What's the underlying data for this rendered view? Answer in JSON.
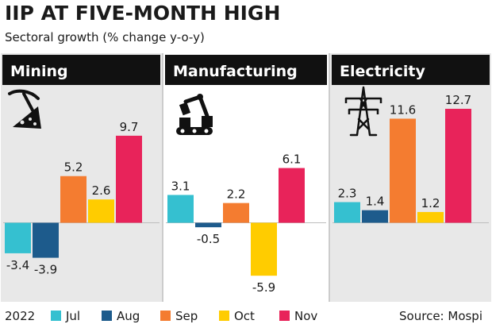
{
  "title": "IIP AT FIVE-MONTH HIGH",
  "subtitle": "Sectoral growth (% change y-o-y)",
  "source": "Source: Mospi",
  "legend": {
    "year": "2022",
    "items": [
      {
        "label": "Jul",
        "color": "#35c0d0"
      },
      {
        "label": "Aug",
        "color": "#1d5b8c"
      },
      {
        "label": "Sep",
        "color": "#f47c30"
      },
      {
        "label": "Oct",
        "color": "#ffcc00"
      },
      {
        "label": "Nov",
        "color": "#e8235a"
      }
    ]
  },
  "colors": {
    "panel_bg": "#e8e8e8",
    "panel_bg_alt": "#ffffff",
    "header_bg": "#111111",
    "header_text": "#ffffff"
  },
  "icons": [
    "mining-pickaxe-icon",
    "manufacturing-robot-arm-icon",
    "electricity-pylon-icon"
  ],
  "chart_data": {
    "type": "bar",
    "categories": [
      "Jul",
      "Aug",
      "Sep",
      "Oct",
      "Nov"
    ],
    "ylabel": "",
    "panels": [
      {
        "name": "Mining",
        "values": [
          -3.4,
          -3.9,
          5.2,
          2.6,
          9.7
        ],
        "labels": [
          "-3.4",
          "-3.9",
          "5.2",
          "2.6",
          "9.7"
        ]
      },
      {
        "name": "Manufacturing",
        "values": [
          3.1,
          -0.5,
          2.2,
          -5.9,
          6.1
        ],
        "labels": [
          "3.1",
          "-0.5",
          "2.2",
          "-5.9",
          "6.1"
        ]
      },
      {
        "name": "Electricity",
        "values": [
          2.3,
          1.4,
          11.6,
          1.2,
          12.7
        ],
        "labels": [
          "2.3",
          "1.4",
          "11.6",
          "1.2",
          "12.7"
        ]
      }
    ]
  }
}
